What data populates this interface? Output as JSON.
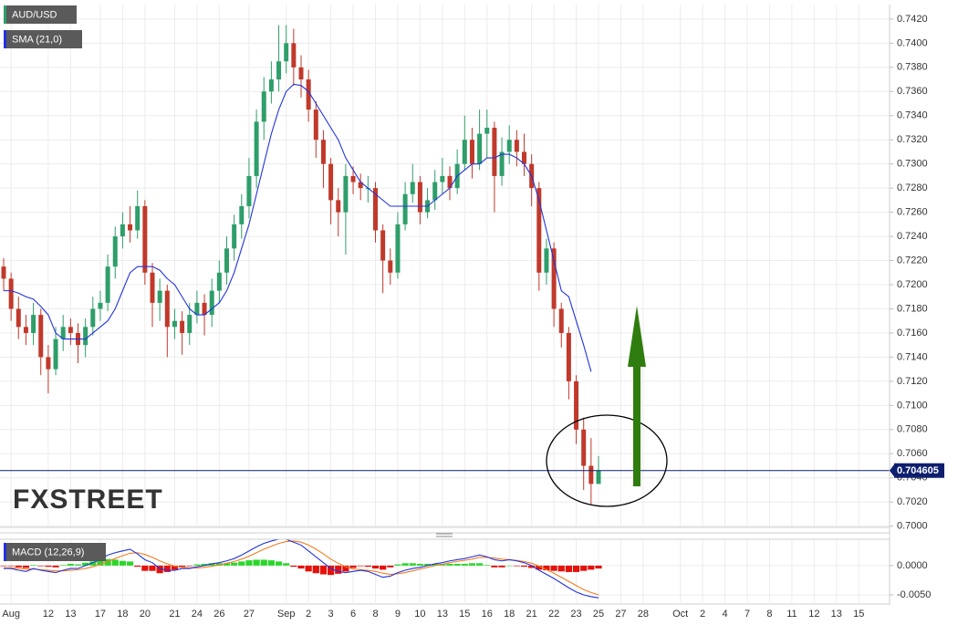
{
  "chart_data": {
    "type": "candlestick",
    "title": "AUD/USD",
    "watermark": "FXSTREET",
    "categories": [
      null,
      "Aug",
      null,
      null,
      null,
      null,
      "12",
      null,
      null,
      "13",
      null,
      null,
      null,
      "17",
      null,
      null,
      "18",
      null,
      null,
      "20",
      null,
      null,
      null,
      "21",
      null,
      null,
      "24",
      null,
      null,
      "26",
      null,
      null,
      null,
      "27",
      null,
      null,
      null,
      null,
      "Sep",
      null,
      null,
      "2",
      null,
      null,
      "3",
      null,
      null,
      "6",
      null,
      null,
      "8",
      null,
      null,
      "9",
      null,
      null,
      "10",
      null,
      null,
      "13",
      null,
      null,
      "15",
      null,
      null,
      "16",
      null,
      null,
      "18",
      null,
      null,
      "21",
      null,
      null,
      "22",
      null,
      null,
      "23",
      null,
      null,
      "25",
      null,
      null,
      "27",
      null,
      null,
      "28",
      null,
      null,
      null,
      null,
      "Oct",
      null,
      null,
      "2",
      null,
      null,
      "4",
      null,
      null,
      "7",
      null,
      null,
      "8",
      null,
      null,
      "11",
      null,
      null,
      "12",
      null,
      null,
      "13",
      null,
      null,
      "15"
    ],
    "open": [
      0.7215,
      0.7205,
      0.718,
      0.7165,
      0.716,
      0.7175,
      0.714,
      0.713,
      0.7155,
      0.7165,
      0.716,
      0.715,
      0.7165,
      0.718,
      0.7185,
      0.7215,
      0.724,
      0.725,
      0.7245,
      0.7265,
      0.721,
      0.7185,
      0.7195,
      0.7165,
      0.717,
      0.716,
      0.7175,
      0.7185,
      0.7175,
      0.7195,
      0.721,
      0.723,
      0.725,
      0.7265,
      0.729,
      0.7335,
      0.736,
      0.737,
      0.7385,
      0.74,
      0.738,
      0.737,
      0.7345,
      0.732,
      0.73,
      0.727,
      0.726,
      0.729,
      0.7285,
      0.728,
      0.728,
      0.7245,
      0.722,
      0.721,
      0.725,
      0.7275,
      0.7285,
      0.726,
      0.727,
      0.7285,
      0.729,
      0.728,
      0.73,
      0.732,
      0.73,
      0.7325,
      0.733,
      0.729,
      0.731,
      0.732,
      0.731,
      0.73,
      0.728,
      0.721,
      0.723,
      0.718,
      0.716,
      0.712,
      0.708,
      0.705,
      0.7035,
      null,
      null,
      null,
      null,
      null,
      null,
      null,
      null,
      null,
      null,
      null,
      null,
      null,
      null,
      null,
      null,
      null,
      null,
      null,
      null,
      null,
      null,
      null,
      null,
      null,
      null,
      null,
      null,
      null,
      null,
      null,
      null,
      null,
      null,
      null
    ],
    "high": [
      0.7222,
      0.721,
      0.719,
      0.7175,
      0.7185,
      0.718,
      0.715,
      0.7165,
      0.7175,
      0.7172,
      0.7168,
      0.7172,
      0.719,
      0.7195,
      0.7225,
      0.7248,
      0.726,
      0.7265,
      0.7278,
      0.727,
      0.7218,
      0.7205,
      0.72,
      0.718,
      0.7178,
      0.7185,
      0.7195,
      0.7192,
      0.7205,
      0.722,
      0.724,
      0.7258,
      0.7275,
      0.7305,
      0.7345,
      0.7372,
      0.7385,
      0.7415,
      0.7415,
      0.7412,
      0.739,
      0.7378,
      0.7352,
      0.7328,
      0.7305,
      0.728,
      0.73,
      0.7298,
      0.7292,
      0.729,
      0.7285,
      0.725,
      0.723,
      0.726,
      0.7285,
      0.73,
      0.729,
      0.728,
      0.7295,
      0.7305,
      0.7298,
      0.7312,
      0.734,
      0.733,
      0.7345,
      0.7345,
      0.7335,
      0.7322,
      0.7332,
      0.7328,
      0.7325,
      0.7308,
      0.7285,
      0.7238,
      0.7235,
      0.7185,
      0.7165,
      0.7125,
      0.709,
      0.7073,
      0.7058,
      null,
      null,
      null,
      null,
      null,
      null,
      null,
      null,
      null,
      null,
      null,
      null,
      null,
      null,
      null,
      null,
      null,
      null,
      null,
      null,
      null,
      null,
      null,
      null,
      null,
      null,
      null,
      null,
      null,
      null,
      null,
      null,
      null,
      null,
      null
    ],
    "low": [
      0.7195,
      0.717,
      0.7155,
      0.715,
      0.715,
      0.7125,
      0.711,
      0.7125,
      0.7145,
      0.715,
      0.7135,
      0.714,
      0.7158,
      0.717,
      0.7178,
      0.7205,
      0.723,
      0.7235,
      0.7238,
      0.72,
      0.7165,
      0.717,
      0.714,
      0.7155,
      0.7142,
      0.715,
      0.7168,
      0.7158,
      0.7165,
      0.7185,
      0.72,
      0.722,
      0.7238,
      0.7255,
      0.728,
      0.732,
      0.735,
      0.736,
      0.7375,
      0.7365,
      0.7355,
      0.7335,
      0.7305,
      0.728,
      0.725,
      0.724,
      0.7225,
      0.7275,
      0.727,
      0.7268,
      0.7235,
      0.7193,
      0.72,
      0.7205,
      0.7245,
      0.7268,
      0.725,
      0.7255,
      0.7262,
      0.7275,
      0.727,
      0.7275,
      0.7295,
      0.7288,
      0.7295,
      0.7305,
      0.726,
      0.7282,
      0.73,
      0.7298,
      0.729,
      0.7265,
      0.7195,
      0.72,
      0.7165,
      0.7148,
      0.7105,
      0.7068,
      0.703,
      0.7018,
      0.7035,
      null,
      null,
      null,
      null,
      null,
      null,
      null,
      null,
      null,
      null,
      null,
      null,
      null,
      null,
      null,
      null,
      null,
      null,
      null,
      null,
      null,
      null,
      null,
      null,
      null,
      null,
      null,
      null,
      null,
      null,
      null,
      null,
      null,
      null,
      null
    ],
    "close": [
      0.7205,
      0.718,
      0.7165,
      0.716,
      0.7175,
      0.714,
      0.713,
      0.7155,
      0.7165,
      0.716,
      0.715,
      0.7165,
      0.718,
      0.7185,
      0.7215,
      0.724,
      0.725,
      0.7245,
      0.7265,
      0.721,
      0.7185,
      0.7195,
      0.7165,
      0.717,
      0.716,
      0.7175,
      0.7185,
      0.7175,
      0.7195,
      0.721,
      0.723,
      0.725,
      0.7265,
      0.729,
      0.7335,
      0.736,
      0.737,
      0.7385,
      0.74,
      0.738,
      0.737,
      0.7345,
      0.732,
      0.73,
      0.727,
      0.726,
      0.729,
      0.7285,
      0.728,
      0.728,
      0.7245,
      0.722,
      0.721,
      0.725,
      0.7275,
      0.7285,
      0.726,
      0.727,
      0.7285,
      0.729,
      0.728,
      0.73,
      0.732,
      0.73,
      0.7325,
      0.733,
      0.729,
      0.731,
      0.732,
      0.731,
      0.73,
      0.728,
      0.721,
      0.723,
      0.718,
      0.716,
      0.712,
      0.708,
      0.705,
      0.7035,
      0.7046,
      null,
      null,
      null,
      null,
      null,
      null,
      null,
      null,
      null,
      null,
      null,
      null,
      null,
      null,
      null,
      null,
      null,
      null,
      null,
      null,
      null,
      null,
      null,
      null,
      null,
      null,
      null,
      null,
      null,
      null,
      null,
      null,
      null,
      null,
      null
    ],
    "up_color": "#2e9e6a",
    "down_color": "#c0392b",
    "overlay": {
      "name": "SMA (21,0)",
      "color": "#2233dd",
      "values": [
        0.7195,
        0.7195,
        0.7193,
        0.719,
        0.7188,
        0.7182,
        0.7175,
        0.716,
        0.7155,
        0.7155,
        0.7155,
        0.7155,
        0.716,
        0.7165,
        0.717,
        0.718,
        0.7195,
        0.721,
        0.7215,
        0.7215,
        0.7215,
        0.7212,
        0.7205,
        0.72,
        0.719,
        0.718,
        0.7175,
        0.7175,
        0.718,
        0.7185,
        0.7195,
        0.721,
        0.723,
        0.725,
        0.7275,
        0.73,
        0.7325,
        0.7345,
        0.736,
        0.7366,
        0.7365,
        0.736,
        0.735,
        0.734,
        0.733,
        0.732,
        0.7305,
        0.7295,
        0.7285,
        0.728,
        0.7275,
        0.727,
        0.7265,
        0.7265,
        0.7265,
        0.7265,
        0.7265,
        0.7265,
        0.727,
        0.7275,
        0.728,
        0.729,
        0.7295,
        0.73,
        0.73,
        0.7305,
        0.7305,
        0.7308,
        0.7308,
        0.7305,
        0.73,
        0.729,
        0.727,
        0.7245,
        0.722,
        0.7195,
        0.719,
        0.717,
        0.715,
        0.7128,
        null,
        null,
        null,
        null,
        null,
        null,
        null,
        null,
        null,
        null,
        null,
        null,
        null,
        null,
        null,
        null,
        null,
        null,
        null,
        null,
        null,
        null,
        null,
        null,
        null,
        null,
        null,
        null,
        null,
        null,
        null,
        null,
        null,
        null,
        null,
        null
      ]
    },
    "last_price": 0.704605,
    "last_price_color": "#0d1f6e",
    "ylim": [
      0.6999,
      0.7432
    ],
    "yticks": [
      {
        "value": 0.7,
        "label": "0.7000"
      },
      {
        "value": 0.702,
        "label": "0.7020"
      },
      {
        "value": 0.704,
        "label": "0.7040"
      },
      {
        "value": 0.706,
        "label": "0.7060"
      },
      {
        "value": 0.708,
        "label": "0.7080"
      },
      {
        "value": 0.71,
        "label": "0.7100"
      },
      {
        "value": 0.712,
        "label": "0.7120"
      },
      {
        "value": 0.714,
        "label": "0.7140"
      },
      {
        "value": 0.716,
        "label": "0.7160"
      },
      {
        "value": 0.718,
        "label": "0.7180"
      },
      {
        "value": 0.72,
        "label": "0.7200"
      },
      {
        "value": 0.722,
        "label": "0.7220"
      },
      {
        "value": 0.724,
        "label": "0.7240"
      },
      {
        "value": 0.726,
        "label": "0.7260"
      },
      {
        "value": 0.728,
        "label": "0.7280"
      },
      {
        "value": 0.73,
        "label": "0.7300"
      },
      {
        "value": 0.732,
        "label": "0.7320"
      },
      {
        "value": 0.734,
        "label": "0.7340"
      },
      {
        "value": 0.736,
        "label": "0.7360"
      },
      {
        "value": 0.738,
        "label": "0.7380"
      },
      {
        "value": 0.74,
        "label": "0.7400"
      },
      {
        "value": 0.742,
        "label": "0.7420"
      }
    ],
    "grid": true,
    "indicator": {
      "name": "MACD (12,26,9)",
      "macd": {
        "color": "#2233dd",
        "values": [
          -0.0005,
          -0.0005,
          -0.0008,
          -0.001,
          -0.0005,
          -0.0008,
          -0.001,
          -0.0012,
          -0.0008,
          -0.0005,
          -0.0005,
          0,
          0.0005,
          0.001,
          0.0018,
          0.0022,
          0.0025,
          0.0028,
          0.002,
          0.001,
          0.0005,
          -0.0005,
          -0.0008,
          -0.0008,
          -0.0005,
          -0.0005,
          -0.0002,
          0,
          0.0003,
          0.0005,
          0.0008,
          0.0012,
          0.0018,
          0.0025,
          0.0032,
          0.0038,
          0.0042,
          0.0045,
          0.0045,
          0.004,
          0.0035,
          0.0025,
          0.0015,
          0.0005,
          -0.0005,
          -0.001,
          -0.0012,
          -0.001,
          -0.0008,
          -0.001,
          -0.0015,
          -0.002,
          -0.0018,
          -0.0012,
          -0.0008,
          -0.0005,
          -0.0003,
          0,
          0.0003,
          0.0005,
          0.0008,
          0.001,
          0.0012,
          0.0015,
          0.0018,
          0.0015,
          0.001,
          0.0008,
          0.001,
          0.0008,
          0.0005,
          0,
          -0.0008,
          -0.0015,
          -0.0022,
          -0.003,
          -0.0038,
          -0.0045,
          -0.005,
          -0.0053,
          -0.0055,
          null,
          null,
          null,
          null,
          null,
          null,
          null,
          null,
          null,
          null,
          null,
          null,
          null,
          null,
          null,
          null,
          null,
          null,
          null,
          null,
          null,
          null,
          null,
          null,
          null,
          null,
          null,
          null,
          null,
          null,
          null,
          null,
          null,
          null,
          null
        ]
      },
      "signal": {
        "color": "#f07e22",
        "values": [
          -0.0004,
          -0.0004,
          -0.0005,
          -0.0006,
          -0.0006,
          -0.0007,
          -0.0008,
          -0.0009,
          -0.0009,
          -0.0008,
          -0.0007,
          -0.0005,
          -0.0002,
          0.0002,
          0.0007,
          0.0012,
          0.0017,
          0.0021,
          0.0022,
          0.0019,
          0.0014,
          0.0008,
          0.0003,
          -0.0001,
          -0.0003,
          -0.0004,
          -0.0004,
          -0.0003,
          -0.0001,
          0.0001,
          0.0004,
          0.0007,
          0.0011,
          0.0016,
          0.0022,
          0.0028,
          0.0033,
          0.0038,
          0.0041,
          0.0042,
          0.004,
          0.0035,
          0.0028,
          0.002,
          0.0011,
          0.0004,
          -0.0002,
          -0.0006,
          -0.0007,
          -0.0008,
          -0.001,
          -0.0013,
          -0.0015,
          -0.0014,
          -0.0012,
          -0.0009,
          -0.0006,
          -0.0003,
          0,
          0.0002,
          0.0005,
          0.0007,
          0.0009,
          0.0011,
          0.0014,
          0.0014,
          0.0013,
          0.0011,
          0.001,
          0.0009,
          0.0007,
          0.0004,
          -0.0001,
          -0.0007,
          -0.0013,
          -0.002,
          -0.0027,
          -0.0034,
          -0.0041,
          -0.0046,
          -0.005,
          null,
          null,
          null,
          null,
          null,
          null,
          null,
          null,
          null,
          null,
          null,
          null,
          null,
          null,
          null,
          null,
          null,
          null,
          null,
          null,
          null,
          null,
          null,
          null,
          null,
          null,
          null,
          null,
          null,
          null,
          null,
          null,
          null,
          null,
          null
        ]
      },
      "histogram": {
        "up_color": "#2bd62b",
        "down_color": "#e3120b",
        "values": [
          -0.0001,
          -0.0001,
          -0.0003,
          -0.0004,
          0.0001,
          -0.0001,
          -0.0002,
          -0.0003,
          0.0001,
          0.0003,
          0.0002,
          0.0005,
          0.0007,
          0.0008,
          0.0011,
          0.001,
          0.0008,
          0.0007,
          -0.0002,
          -0.0009,
          -0.0009,
          -0.0013,
          -0.0011,
          -0.0007,
          -0.0002,
          -0.0001,
          0.0002,
          0.0003,
          0.0004,
          0.0004,
          0.0004,
          0.0005,
          0.0007,
          0.0009,
          0.001,
          0.001,
          0.0009,
          0.0007,
          0.0004,
          -0.0002,
          -0.0005,
          -0.001,
          -0.0013,
          -0.0015,
          -0.0016,
          -0.0014,
          -0.001,
          -0.0004,
          -0.0001,
          -0.0002,
          -0.0005,
          -0.0007,
          -0.0003,
          0.0002,
          0.0004,
          0.0004,
          0.0003,
          0.0003,
          0.0003,
          0.0003,
          0.0003,
          0.0003,
          0.0003,
          0.0004,
          0.0004,
          0.0001,
          -0.0003,
          -0.0003,
          0,
          -0.0001,
          -0.0002,
          -0.0004,
          -0.0007,
          -0.0008,
          -0.0009,
          -0.001,
          -0.0011,
          -0.0011,
          -0.0009,
          -0.0007,
          -0.0005,
          null,
          null,
          null,
          null,
          null,
          null,
          null,
          null,
          null,
          null,
          null,
          null,
          null,
          null,
          null,
          null,
          null,
          null,
          null,
          null,
          null,
          null,
          null,
          null,
          null,
          null,
          null,
          null,
          null,
          null,
          null,
          null,
          null,
          null,
          null
        ]
      },
      "ylim": [
        -0.00625,
        0.0045
      ],
      "yticks": [
        {
          "value": 0,
          "label": "0.0000"
        },
        {
          "value": -0.005,
          "label": "-0.0050"
        }
      ]
    }
  }
}
